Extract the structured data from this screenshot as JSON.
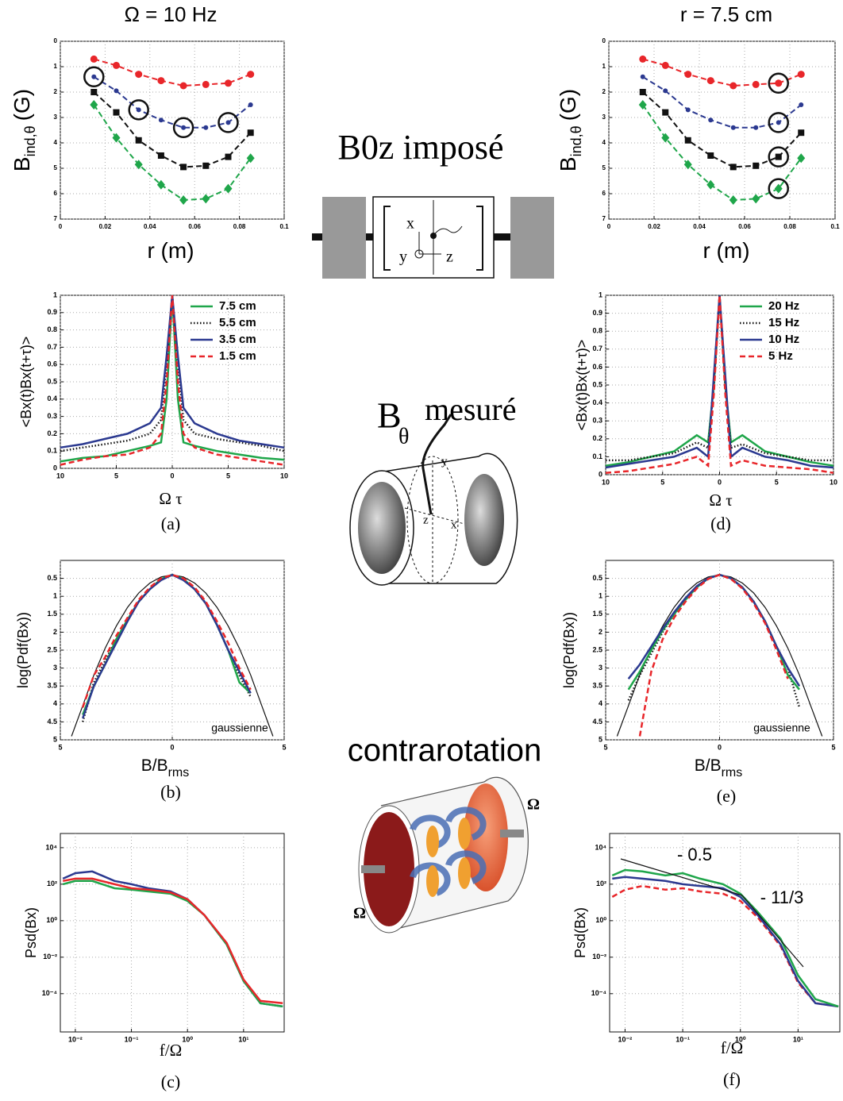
{
  "chart_data": [
    {
      "type": "line",
      "title": "Ω = 10 Hz",
      "ylabel": "B",
      "ylabel_sub": "ind,θ",
      "ylabel_unit": "(G)",
      "xlabel": "r (m)",
      "x": [
        0.015,
        0.025,
        0.035,
        0.045,
        0.055,
        0.065,
        0.075,
        0.085
      ],
      "xlim": [
        0,
        0.1
      ],
      "xticks": [
        0,
        0.02,
        0.04,
        0.06,
        0.08,
        0.1
      ],
      "ylim": [
        7,
        0
      ],
      "yticks": [
        0,
        1,
        2,
        3,
        4,
        5,
        6,
        7
      ],
      "grid": true,
      "series": [
        {
          "color": "#e8262a",
          "dash": "dashed",
          "marker": "circle",
          "values": [
            0.7,
            0.95,
            1.3,
            1.55,
            1.75,
            1.7,
            1.65,
            1.3
          ]
        },
        {
          "color": "#2b3990",
          "dash": "dashed",
          "marker": "dot",
          "values": [
            1.4,
            1.95,
            2.7,
            3.1,
            3.4,
            3.4,
            3.2,
            2.5
          ],
          "circled": [
            0,
            2,
            4,
            6
          ]
        },
        {
          "color": "#111111",
          "dash": "dashed",
          "marker": "square",
          "values": [
            2.0,
            2.8,
            3.9,
            4.5,
            4.95,
            4.9,
            4.55,
            3.6
          ]
        },
        {
          "color": "#1fa64a",
          "dash": "dashed",
          "marker": "diamond",
          "values": [
            2.5,
            3.8,
            4.85,
            5.65,
            6.25,
            6.2,
            5.8,
            4.6
          ]
        }
      ]
    },
    {
      "type": "line",
      "title": "r = 7.5 cm",
      "ylabel": "B",
      "ylabel_sub": "ind,θ",
      "ylabel_unit": "(G)",
      "xlabel": "r (m)",
      "x": [
        0.015,
        0.025,
        0.035,
        0.045,
        0.055,
        0.065,
        0.075,
        0.085
      ],
      "xlim": [
        0,
        0.1
      ],
      "xticks": [
        0,
        0.02,
        0.04,
        0.06,
        0.08,
        0.1
      ],
      "ylim": [
        7,
        0
      ],
      "yticks": [
        0,
        1,
        2,
        3,
        4,
        5,
        6,
        7
      ],
      "grid": true,
      "series": [
        {
          "color": "#e8262a",
          "dash": "dashed",
          "marker": "circle",
          "values": [
            0.7,
            0.95,
            1.3,
            1.55,
            1.75,
            1.7,
            1.65,
            1.3
          ],
          "circled": [
            6
          ]
        },
        {
          "color": "#2b3990",
          "dash": "dashed",
          "marker": "dot",
          "values": [
            1.4,
            1.95,
            2.7,
            3.1,
            3.4,
            3.4,
            3.2,
            2.5
          ],
          "circled": [
            6
          ]
        },
        {
          "color": "#111111",
          "dash": "dashed",
          "marker": "square",
          "values": [
            2.0,
            2.8,
            3.9,
            4.5,
            4.95,
            4.9,
            4.55,
            3.6
          ],
          "circled": [
            6
          ]
        },
        {
          "color": "#1fa64a",
          "dash": "dashed",
          "marker": "diamond",
          "values": [
            2.5,
            3.8,
            4.85,
            5.65,
            6.25,
            6.2,
            5.8,
            4.6
          ],
          "circled": [
            6
          ]
        }
      ]
    },
    {
      "type": "line",
      "ylabel": "<Bx(t)Bx(t+τ)>",
      "xlabel": "Ω τ",
      "caption": "(a)",
      "legend": "upper right",
      "x": [
        -10,
        -8,
        -6,
        -4,
        -2,
        -1,
        -0.5,
        0,
        0.5,
        1,
        2,
        4,
        6,
        8,
        10
      ],
      "xlim": [
        -10,
        10
      ],
      "xticks": [
        {
          "value": -10,
          "label": "10"
        },
        {
          "value": -5,
          "label": "5"
        },
        0,
        5,
        10
      ],
      "ylim": [
        0,
        1
      ],
      "yticks": [
        0,
        0.1,
        0.2,
        0.3,
        0.4,
        0.5,
        0.6,
        0.7,
        0.8,
        0.9,
        1
      ],
      "grid": true,
      "series": [
        {
          "name": "7.5 cm",
          "color": "#1fa64a",
          "dash": "solid",
          "values": [
            0.04,
            0.06,
            0.07,
            0.1,
            0.13,
            0.15,
            0.4,
            1,
            0.4,
            0.15,
            0.13,
            0.1,
            0.08,
            0.06,
            0.05
          ]
        },
        {
          "name": "5.5 cm",
          "color": "#111111",
          "dash": "dotted",
          "values": [
            0.1,
            0.12,
            0.14,
            0.16,
            0.2,
            0.28,
            0.6,
            1,
            0.6,
            0.28,
            0.2,
            0.17,
            0.15,
            0.13,
            0.1
          ]
        },
        {
          "name": "3.5 cm",
          "color": "#2b3990",
          "dash": "solid",
          "values": [
            0.12,
            0.14,
            0.17,
            0.2,
            0.26,
            0.35,
            0.65,
            1,
            0.65,
            0.35,
            0.26,
            0.2,
            0.16,
            0.14,
            0.12
          ]
        },
        {
          "name": "1.5 cm",
          "color": "#e8262a",
          "dash": "dashed",
          "values": [
            0.02,
            0.05,
            0.07,
            0.08,
            0.12,
            0.2,
            0.5,
            1,
            0.5,
            0.2,
            0.12,
            0.08,
            0.06,
            0.04,
            0.02
          ]
        }
      ]
    },
    {
      "type": "line",
      "ylabel": "<Bx(t)Bx(t+τ)>",
      "xlabel": "Ω τ",
      "caption": "(d)",
      "legend": "upper right",
      "x": [
        -10,
        -8,
        -6,
        -4,
        -2,
        -1,
        -0.5,
        0,
        0.5,
        1,
        2,
        4,
        6,
        8,
        10
      ],
      "xlim": [
        -10,
        10
      ],
      "xticks": [
        {
          "value": -10,
          "label": "10"
        },
        {
          "value": -5,
          "label": "5"
        },
        0,
        5,
        10
      ],
      "ylim": [
        0,
        1
      ],
      "yticks": [
        0,
        0.1,
        0.2,
        0.3,
        0.4,
        0.5,
        0.6,
        0.7,
        0.8,
        0.9,
        1
      ],
      "grid": true,
      "series": [
        {
          "name": "20 Hz",
          "color": "#1fa64a",
          "dash": "solid",
          "values": [
            0.05,
            0.07,
            0.1,
            0.13,
            0.22,
            0.18,
            0.5,
            1,
            0.5,
            0.18,
            0.22,
            0.13,
            0.1,
            0.07,
            0.05
          ]
        },
        {
          "name": "15 Hz",
          "color": "#111111",
          "dash": "dotted",
          "values": [
            0.08,
            0.08,
            0.1,
            0.12,
            0.18,
            0.15,
            0.5,
            1,
            0.5,
            0.15,
            0.17,
            0.12,
            0.1,
            0.08,
            0.08
          ]
        },
        {
          "name": "10 Hz",
          "color": "#2b3990",
          "dash": "solid",
          "values": [
            0.04,
            0.06,
            0.08,
            0.1,
            0.15,
            0.1,
            0.55,
            1,
            0.55,
            0.1,
            0.15,
            0.1,
            0.08,
            0.05,
            0.04
          ]
        },
        {
          "name": "5 Hz",
          "color": "#e8262a",
          "dash": "dashed",
          "values": [
            0.01,
            0.02,
            0.04,
            0.06,
            0.1,
            0.05,
            0.45,
            1,
            0.45,
            0.05,
            0.08,
            0.05,
            0.04,
            0.03,
            0.01
          ]
        }
      ]
    },
    {
      "type": "line",
      "ylabel": "log(Pdf(Bx))",
      "xlabel": "B/B",
      "xlabel_sub": "rms",
      "caption": "(b)",
      "annotations": [
        "gaussienne"
      ],
      "x": [
        -4.5,
        -4,
        -3.5,
        -3,
        -2.5,
        -2,
        -1.5,
        -1,
        -0.5,
        0,
        0.5,
        1,
        1.5,
        2,
        2.5,
        3,
        3.5,
        4,
        4.5
      ],
      "xlim": [
        -5,
        5
      ],
      "xticks": [
        {
          "value": -5,
          "label": "5"
        },
        0,
        5
      ],
      "ylim": [
        5,
        0
      ],
      "yticks": [
        0.5,
        1,
        1.5,
        2,
        2.5,
        3,
        3.5,
        4,
        4.5,
        5
      ],
      "grid": true,
      "series": [
        {
          "color": "#111111",
          "dash": "thin",
          "values": [
            4.9,
            4.05,
            3.19,
            2.45,
            1.83,
            1.31,
            0.91,
            0.63,
            0.46,
            0.4,
            0.46,
            0.63,
            0.91,
            1.31,
            1.83,
            2.45,
            3.19,
            4.05,
            4.9
          ]
        },
        {
          "color": "#111111",
          "dash": "dotted",
          "values": [
            null,
            4.5,
            3.4,
            2.8,
            2.2,
            1.65,
            1.15,
            0.8,
            0.52,
            0.4,
            0.52,
            0.8,
            1.2,
            1.8,
            2.5,
            3.2,
            3.8,
            null,
            null
          ]
        },
        {
          "color": "#1fa64a",
          "dash": "solid",
          "values": [
            null,
            4.3,
            3.5,
            2.9,
            2.2,
            1.65,
            1.15,
            0.8,
            0.52,
            0.4,
            0.52,
            0.8,
            1.2,
            1.8,
            2.5,
            3.4,
            3.7,
            null,
            null
          ]
        },
        {
          "color": "#2b3990",
          "dash": "solid",
          "values": [
            null,
            4.4,
            3.5,
            2.9,
            2.3,
            1.7,
            1.15,
            0.8,
            0.55,
            0.4,
            0.55,
            0.8,
            1.2,
            1.8,
            2.5,
            3.1,
            3.7,
            null,
            null
          ]
        },
        {
          "color": "#e8262a",
          "dash": "dashed",
          "values": [
            null,
            4.1,
            3.2,
            2.7,
            2.1,
            1.6,
            1.1,
            0.75,
            0.5,
            0.4,
            0.5,
            0.75,
            1.15,
            1.7,
            2.3,
            3.0,
            3.6,
            null,
            null
          ]
        }
      ]
    },
    {
      "type": "line",
      "ylabel": "log(Pdf(Bx))",
      "xlabel": "B/B",
      "xlabel_sub": "rms",
      "caption": "(e)",
      "annotations": [
        "gaussienne"
      ],
      "x": [
        -4.5,
        -4,
        -3.5,
        -3,
        -2.5,
        -2,
        -1.5,
        -1,
        -0.5,
        0,
        0.5,
        1,
        1.5,
        2,
        2.5,
        3,
        3.5,
        4,
        4.5
      ],
      "xlim": [
        -5,
        5
      ],
      "xticks": [
        {
          "value": -5,
          "label": "5"
        },
        0,
        5
      ],
      "ylim": [
        5,
        0
      ],
      "yticks": [
        0.5,
        1,
        1.5,
        2,
        2.5,
        3,
        3.5,
        4,
        4.5,
        5
      ],
      "grid": true,
      "series": [
        {
          "color": "#111111",
          "dash": "thin",
          "values": [
            4.9,
            4.05,
            3.19,
            2.45,
            1.83,
            1.31,
            0.91,
            0.63,
            0.46,
            0.4,
            0.46,
            0.63,
            0.91,
            1.31,
            1.83,
            2.45,
            3.19,
            4.05,
            4.9
          ]
        },
        {
          "color": "#111111",
          "dash": "dotted",
          "values": [
            null,
            3.9,
            3.2,
            2.6,
            2.0,
            1.5,
            1.1,
            0.75,
            0.5,
            0.4,
            0.5,
            0.75,
            1.15,
            1.7,
            2.4,
            3.0,
            4.1,
            null,
            null
          ]
        },
        {
          "color": "#1fa64a",
          "dash": "solid",
          "values": [
            null,
            3.6,
            3.1,
            2.5,
            1.95,
            1.5,
            1.1,
            0.75,
            0.5,
            0.4,
            0.5,
            0.75,
            1.15,
            1.7,
            2.4,
            3.2,
            3.6,
            null,
            null
          ]
        },
        {
          "color": "#2b3990",
          "dash": "solid",
          "values": [
            null,
            3.3,
            2.9,
            2.4,
            1.9,
            1.45,
            1.05,
            0.72,
            0.5,
            0.4,
            0.5,
            0.75,
            1.15,
            1.7,
            2.4,
            3.0,
            3.5,
            null,
            null
          ]
        },
        {
          "color": "#e8262a",
          "dash": "dashed",
          "values": [
            null,
            null,
            4.9,
            3.1,
            2.2,
            1.6,
            1.15,
            0.78,
            0.52,
            0.4,
            0.52,
            0.78,
            1.2,
            1.75,
            2.5,
            3.3,
            null,
            null,
            null
          ]
        }
      ]
    },
    {
      "type": "line",
      "ylabel": "Psd(Bx)",
      "xlabel": "f/Ω",
      "caption": "(c)",
      "xlog": true,
      "ylog": true,
      "x": [
        0.006,
        0.01,
        0.02,
        0.05,
        0.1,
        0.2,
        0.5,
        1,
        2,
        5,
        10,
        20,
        50
      ],
      "xlim": [
        0.0054,
        53
      ],
      "xticks": [
        {
          "value": 0.01,
          "label": "10⁻²"
        },
        {
          "value": 0.1,
          "label": "10⁻¹"
        },
        {
          "value": 1,
          "label": "10⁰"
        },
        {
          "value": 10,
          "label": "10¹"
        }
      ],
      "ylim": [
        8e-07,
        60000.0
      ],
      "yticks": [
        {
          "value": 0.0001,
          "label": "10⁻⁴"
        },
        {
          "value": 0.01,
          "label": "10⁻²"
        },
        {
          "value": 1,
          "label": "10⁰"
        },
        {
          "value": 100,
          "label": "10²"
        },
        {
          "value": 10000,
          "label": "10⁴"
        }
      ],
      "grid": true,
      "series": [
        {
          "color": "#2b3990",
          "dash": "solid",
          "values": [
            200,
            400,
            500,
            150,
            100,
            60,
            40,
            15,
            2,
            0.05,
            0.0005,
            3e-05,
            2e-05
          ]
        },
        {
          "color": "#1fa64a",
          "dash": "solid",
          "values": [
            100,
            150,
            150,
            60,
            50,
            40,
            30,
            12,
            2,
            0.05,
            0.0005,
            3e-05,
            2e-05
          ]
        },
        {
          "color": "#e8262a",
          "dash": "solid",
          "values": [
            150,
            200,
            200,
            100,
            60,
            50,
            35,
            15,
            2,
            0.06,
            0.0006,
            4e-05,
            3e-05
          ]
        }
      ]
    },
    {
      "type": "line",
      "ylabel": "Psd(Bx)",
      "xlabel": "f/Ω",
      "caption": "(f)",
      "xlog": true,
      "ylog": true,
      "annotations": [
        "- 0.5",
        "- 11/3"
      ],
      "x": [
        0.006,
        0.01,
        0.02,
        0.05,
        0.1,
        0.2,
        0.5,
        1,
        2,
        5,
        10,
        20,
        50
      ],
      "xlim": [
        0.0054,
        53
      ],
      "xticks": [
        {
          "value": 0.01,
          "label": "10⁻²"
        },
        {
          "value": 0.1,
          "label": "10⁻¹"
        },
        {
          "value": 1,
          "label": "10⁰"
        },
        {
          "value": 10,
          "label": "10¹"
        }
      ],
      "ylim": [
        8e-07,
        60000.0
      ],
      "yticks": [
        {
          "value": 0.0001,
          "label": "10⁻⁴"
        },
        {
          "value": 0.01,
          "label": "10⁻²"
        },
        {
          "value": 1,
          "label": "10⁰"
        },
        {
          "value": 100,
          "label": "10²"
        },
        {
          "value": 10000,
          "label": "10⁴"
        }
      ],
      "grid": true,
      "series": [
        {
          "color": "#e8262a",
          "dash": "dashed",
          "values": [
            20,
            50,
            80,
            50,
            60,
            40,
            30,
            12,
            1.5,
            0.04,
            0.0004,
            3e-05,
            2e-05
          ]
        },
        {
          "color": "#2b3990",
          "dash": "solid",
          "values": [
            200,
            250,
            200,
            150,
            100,
            80,
            60,
            20,
            2,
            0.05,
            0.0005,
            3e-05,
            2e-05
          ]
        },
        {
          "color": "#1fa64a",
          "dash": "solid",
          "values": [
            300,
            600,
            500,
            300,
            400,
            200,
            100,
            30,
            3,
            0.1,
            0.001,
            5e-05,
            2e-05
          ]
        }
      ]
    }
  ],
  "diagrams": {
    "imposed": "B0z  imposé",
    "axis_x": "x",
    "axis_y": "y",
    "axis_z": "z",
    "measured_symbol": "B",
    "measured_sub": "θ",
    "measured": "mesuré",
    "probe_y": "y",
    "probe_z": "z",
    "probe_x": "x",
    "counter": "contrarotation",
    "omega_right": "Ω",
    "omega_left": "Ω"
  }
}
